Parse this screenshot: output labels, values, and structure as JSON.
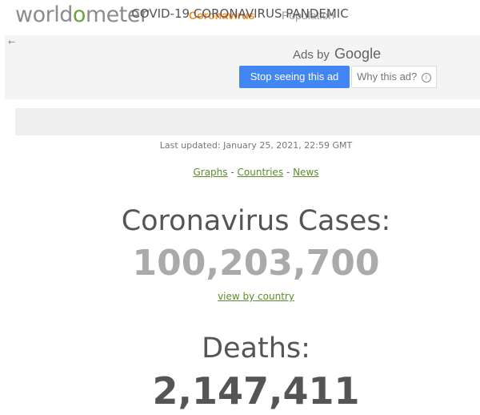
{
  "nav": {
    "logo_prefix": "world",
    "logo_accent": "o",
    "logo_suffix": "meter",
    "links": [
      "Coronavirus",
      "Population"
    ]
  },
  "ad": {
    "back_arrow": "←",
    "ads_by": "Ads by",
    "google": "Google",
    "stop_label": "Stop seeing this ad",
    "why_label": "Why this ad?",
    "info_glyph": "i"
  },
  "main": {
    "title": "COVID-19 CORONAVIRUS PANDEMIC",
    "last_updated": "Last updated: January 25, 2021, 22:59 GMT",
    "links": {
      "graphs": "Graphs",
      "countries": "Countries",
      "news": "News",
      "separator": "-"
    },
    "cases_label": "Coronavirus Cases:",
    "cases_value": "100,203,700",
    "view_by_country": "view by country",
    "deaths_label": "Deaths:",
    "deaths_value": "2,147,411"
  },
  "colors": {
    "accent_orange": "#f5922a",
    "link_green": "#5b8c2c",
    "google_blue": "#4285f4"
  }
}
